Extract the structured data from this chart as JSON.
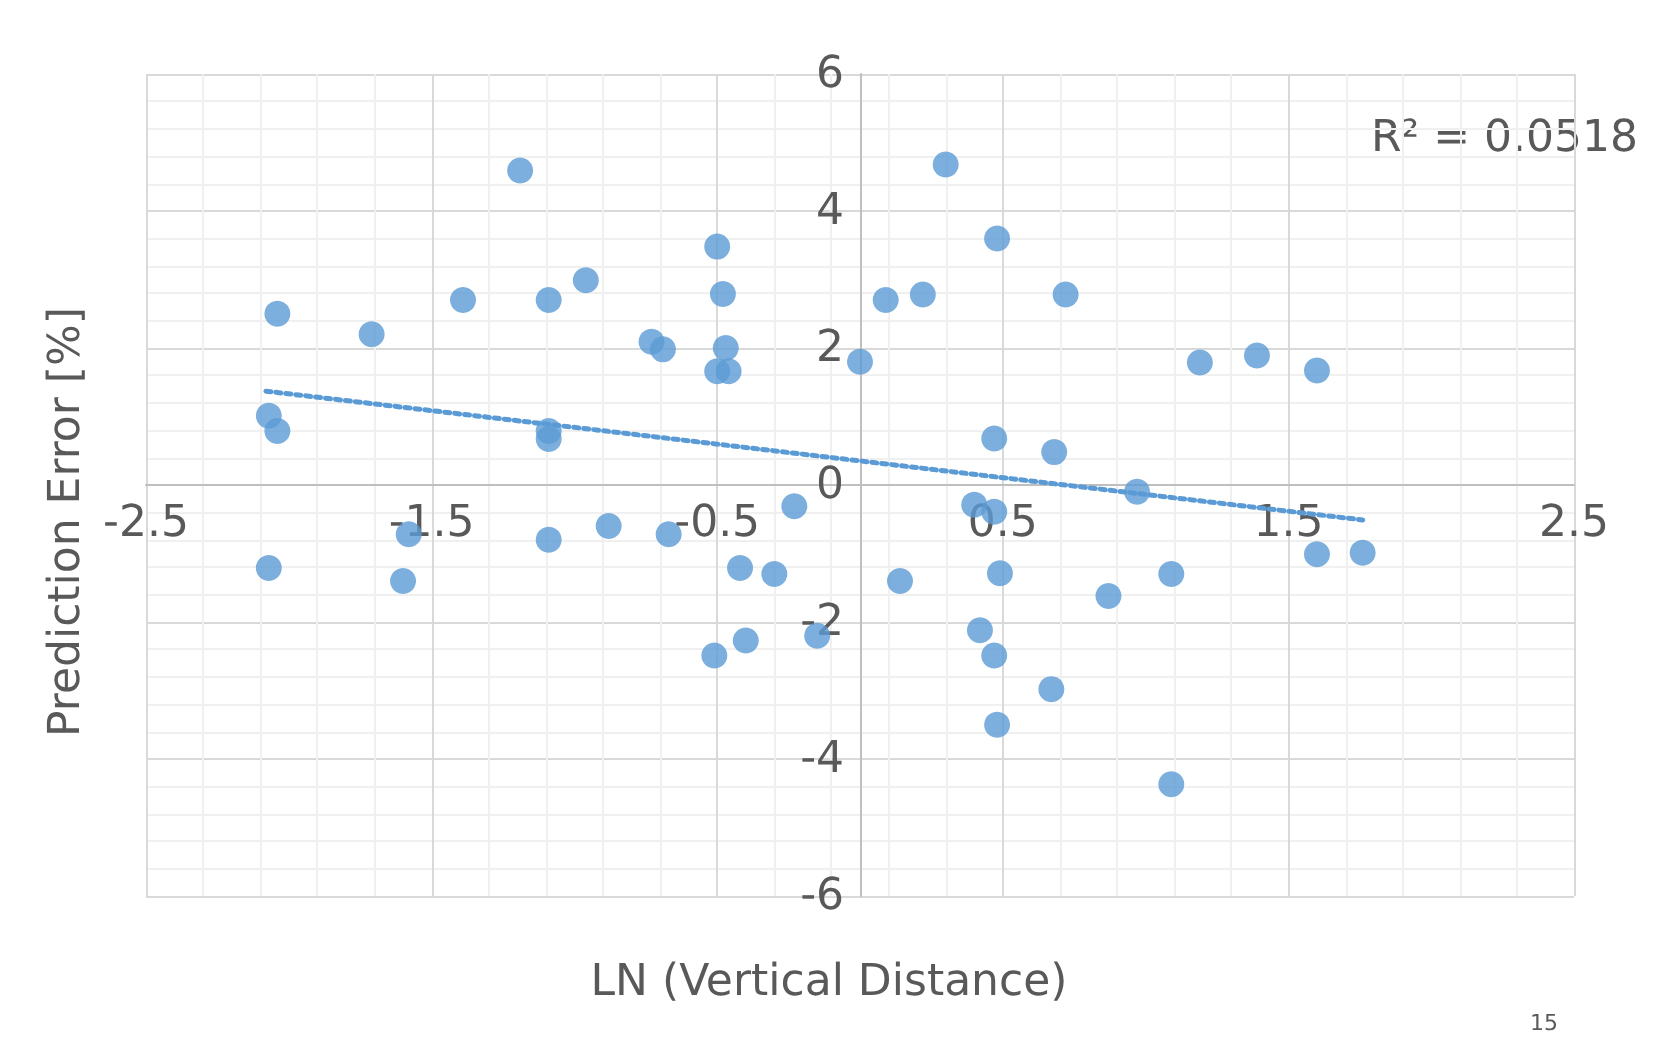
{
  "chart_data": {
    "type": "scatter",
    "xlabel": "LN (Vertical Distance)",
    "ylabel": "Prediction Error [%]",
    "annotations": [
      "R² = 0.0518",
      "15"
    ],
    "xlim": [
      -2.5,
      2.5
    ],
    "xticks": [
      -2.5,
      -1.5,
      -0.5,
      0.5,
      1.5,
      2.5
    ],
    "ylim": [
      -6,
      6
    ],
    "yticks": [
      -6,
      -4,
      -2,
      0,
      2,
      4,
      6
    ],
    "grid": true,
    "marker": "circle",
    "series": [
      {
        "color": "#5b9bd5",
        "x": [
          -2.04,
          -1.71,
          -1.39,
          -1.19,
          -1.09,
          -0.96,
          -0.73,
          -0.69,
          -0.5,
          -0.48,
          -0.47,
          -0.5,
          -0.46,
          0.0,
          -2.07,
          -2.04,
          -1.09,
          -1.09,
          0.09,
          0.3,
          0.48,
          0.22,
          0.72,
          1.19,
          1.39,
          1.6,
          0.47,
          0.68,
          0.97,
          0.4,
          0.47,
          1.6,
          1.76,
          0.49,
          0.14,
          0.87,
          1.09,
          0.42,
          0.47,
          0.67,
          0.48,
          1.09,
          -2.07,
          -1.58,
          -1.6,
          -1.09,
          -0.88,
          -0.67,
          -0.23,
          -0.42,
          -0.3,
          -0.51,
          -0.4,
          -0.15
        ],
        "values": [
          2.5,
          2.2,
          2.7,
          4.59,
          2.7,
          2.99,
          2.09,
          1.98,
          3.48,
          2.79,
          2.0,
          1.66,
          1.66,
          1.8,
          1.01,
          0.79,
          0.79,
          0.67,
          2.7,
          4.68,
          3.6,
          2.78,
          2.78,
          1.79,
          1.89,
          1.67,
          0.68,
          0.48,
          -0.1,
          -0.29,
          -0.39,
          -1.01,
          -0.99,
          -1.29,
          -1.4,
          -1.62,
          -1.3,
          -2.12,
          -2.49,
          -2.98,
          -3.5,
          -4.37,
          -1.21,
          -0.72,
          -1.4,
          -0.8,
          -0.6,
          -0.72,
          -0.31,
          -1.21,
          -1.3,
          -2.49,
          -2.27,
          -2.2
        ]
      },
      {
        "type": "line",
        "color": "#5b9bd5",
        "line_style": "dotted",
        "marker": "none",
        "x": [
          -2.08,
          1.76
        ],
        "values": [
          1.37,
          -0.51
        ]
      }
    ]
  }
}
